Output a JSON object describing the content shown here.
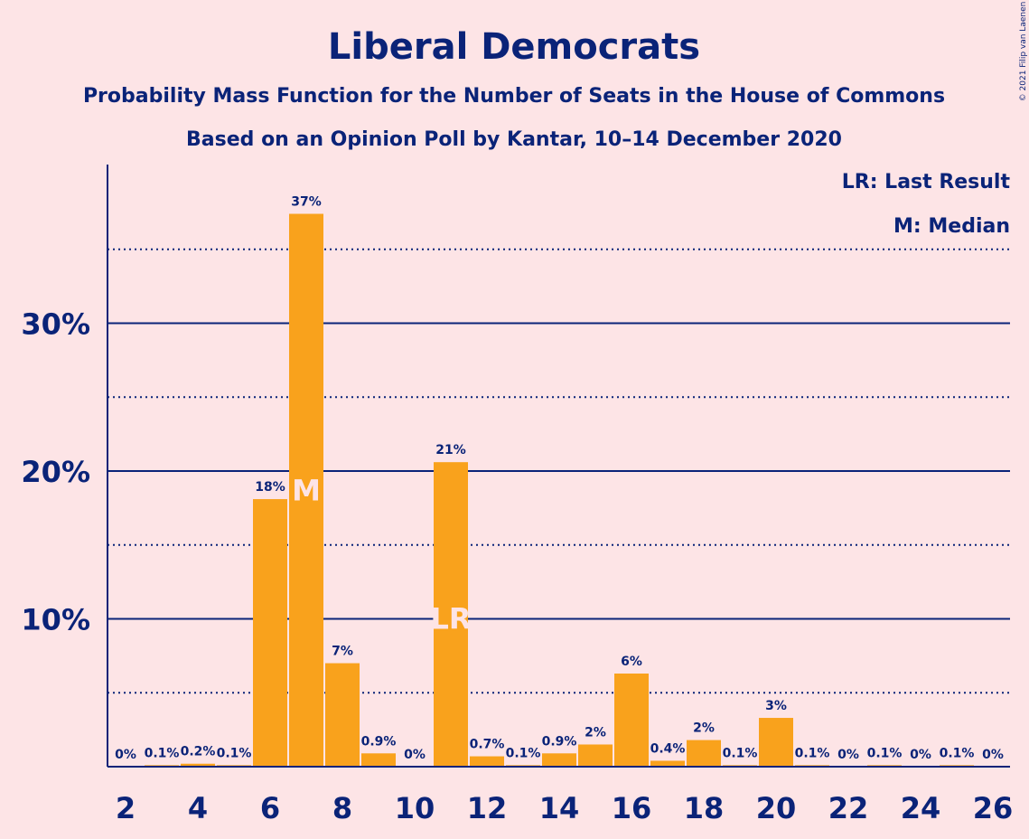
{
  "colors": {
    "background": "#FDE4E6",
    "ink": "#0A2378",
    "bar": "#F9A21C",
    "bar_label_inner": "#FDE4E6"
  },
  "chart_data": {
    "type": "bar",
    "title": "Liberal Democrats",
    "subtitle_1": "Probability Mass Function for the Number of Seats in the House of Commons",
    "subtitle_2": "Based on an Opinion Poll by Kantar, 10–14 December 2020",
    "copyright": "© 2021 Filip van Laenen",
    "legend": {
      "last_result": "LR: Last Result",
      "median": "M: Median",
      "placement": "top-right"
    },
    "x": [
      2,
      3,
      4,
      5,
      6,
      7,
      8,
      9,
      10,
      11,
      12,
      13,
      14,
      15,
      16,
      17,
      18,
      19,
      20,
      21,
      22,
      23,
      24,
      25,
      26
    ],
    "values": [
      0,
      0.1,
      0.2,
      0.1,
      18.1,
      37.4,
      7.0,
      0.9,
      0,
      20.6,
      0.7,
      0.1,
      0.9,
      1.5,
      6.3,
      0.4,
      1.8,
      0.1,
      3.3,
      0.1,
      0,
      0.1,
      0,
      0.1,
      0
    ],
    "labels": [
      "0%",
      "0.1%",
      "0.2%",
      "0.1%",
      "18%",
      "37%",
      "7%",
      "0.9%",
      "0%",
      "21%",
      "0.7%",
      "0.1%",
      "0.9%",
      "2%",
      "6%",
      "0.4%",
      "2%",
      "0.1%",
      "3%",
      "0.1%",
      "0%",
      "0.1%",
      "0%",
      "0.1%",
      "0%"
    ],
    "x_ticks": [
      2,
      4,
      6,
      8,
      10,
      12,
      14,
      16,
      18,
      20,
      22,
      24,
      26
    ],
    "y_ticks": [
      10,
      20,
      30
    ],
    "y_tick_labels": [
      "10%",
      "20%",
      "30%"
    ],
    "y_minor_ticks": [
      5,
      15,
      25,
      35
    ],
    "ylim": [
      0,
      40.7
    ],
    "markers": [
      {
        "seats": 7,
        "text": "M"
      },
      {
        "seats": 11,
        "text": "LR"
      }
    ],
    "grid": true
  }
}
